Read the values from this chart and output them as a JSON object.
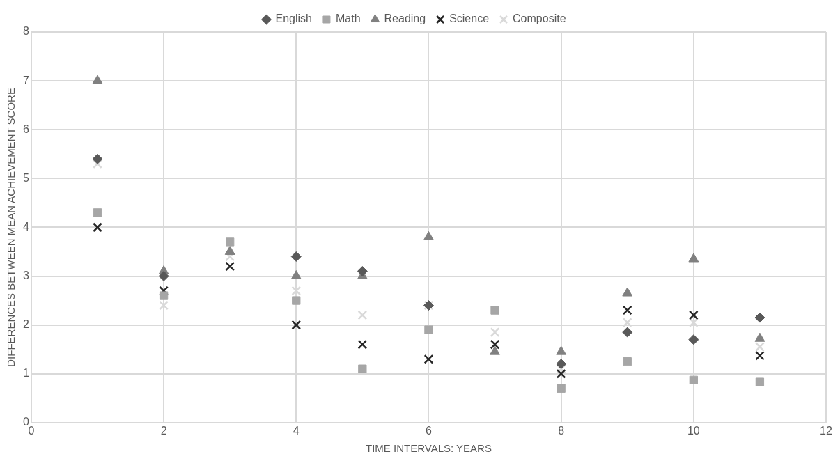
{
  "chart_data": {
    "type": "scatter",
    "xlabel": "TIME INTERVALS: YEARS",
    "ylabel": "DIFFERENCES BETWEEN MEAN ACHIEVEMENT SCORE",
    "x": [
      1,
      2,
      3,
      4,
      5,
      6,
      7,
      8,
      9,
      10,
      11
    ],
    "series": [
      {
        "name": "English",
        "color": "#595959",
        "marker": "diamond",
        "values": [
          5.4,
          3.0,
          null,
          3.4,
          3.1,
          2.4,
          null,
          1.2,
          1.85,
          1.7,
          2.15
        ]
      },
      {
        "name": "Math",
        "color": "#a6a6a6",
        "marker": "square",
        "values": [
          4.3,
          2.6,
          3.7,
          2.5,
          1.1,
          1.9,
          2.3,
          0.7,
          1.25,
          0.87,
          0.83
        ]
      },
      {
        "name": "Reading",
        "color": "#808080",
        "marker": "triangle",
        "values": [
          7.0,
          3.1,
          3.5,
          3.0,
          3.0,
          3.8,
          1.45,
          1.45,
          2.65,
          3.35,
          1.72
        ]
      },
      {
        "name": "Science",
        "color": "#262626",
        "marker": "cross",
        "values": [
          4.0,
          2.7,
          3.2,
          2.0,
          1.6,
          1.3,
          1.6,
          1.0,
          2.3,
          2.2,
          1.37
        ]
      },
      {
        "name": "Composite",
        "color": "#d9d9d9",
        "marker": "cross",
        "values": [
          5.3,
          2.4,
          3.4,
          2.7,
          2.2,
          2.4,
          1.85,
          1.1,
          2.05,
          2.05,
          1.55
        ]
      }
    ],
    "xlim": [
      0,
      12
    ],
    "xticks": [
      0,
      2,
      4,
      6,
      8,
      10,
      12
    ],
    "ylim": [
      0,
      8
    ],
    "yticks": [
      0,
      1,
      2,
      3,
      4,
      5,
      6,
      7,
      8
    ],
    "grid": true,
    "legend": "top"
  }
}
